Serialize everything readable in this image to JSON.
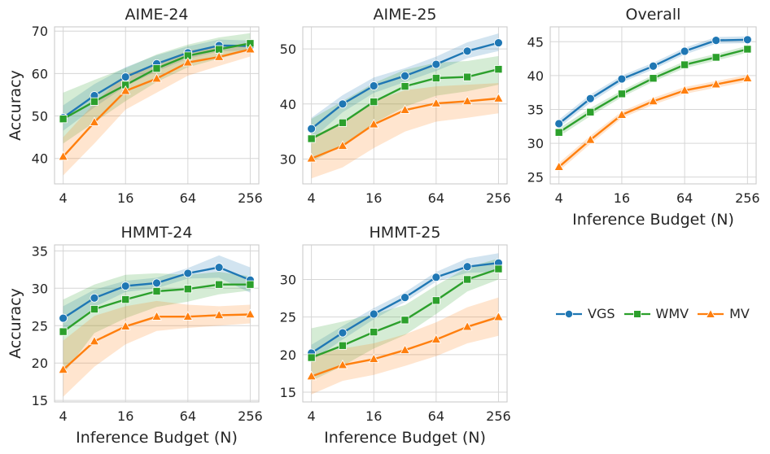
{
  "figure": {
    "legend": [
      {
        "name": "VGS",
        "color": "#1f77b4",
        "marker": "circle"
      },
      {
        "name": "WMV",
        "color": "#2ca02c",
        "marker": "square"
      },
      {
        "name": "MV",
        "color": "#ff7f0e",
        "marker": "triangle"
      }
    ]
  },
  "chart_data": [
    {
      "type": "line",
      "title": "AIME-24",
      "xlabel": "",
      "ylabel": "Accuracy",
      "x_scale": "log2",
      "x": [
        4,
        8,
        16,
        32,
        64,
        128,
        256
      ],
      "xticks": [
        4,
        16,
        64,
        256
      ],
      "xtick_labels": [
        "4",
        "16",
        "64",
        "256"
      ],
      "xlim": [
        3.3,
        310
      ],
      "ylim": [
        34,
        71
      ],
      "yticks": [
        40,
        50,
        60,
        70
      ],
      "grid": true,
      "series": [
        {
          "name": "VGS",
          "values": [
            49.6,
            54.8,
            59.2,
            62.3,
            64.9,
            66.6,
            66.5
          ],
          "band_low": [
            46.5,
            52,
            57,
            60.5,
            63.5,
            65.2,
            65.5
          ],
          "band_high": [
            52.5,
            57.5,
            61.5,
            64.3,
            66.4,
            68,
            67.8
          ]
        },
        {
          "name": "WMV",
          "values": [
            49.3,
            53.4,
            57.3,
            61.2,
            64.2,
            65.7,
            67.1
          ],
          "band_low": [
            43.5,
            48.5,
            53.5,
            58,
            61.5,
            63.5,
            65.5
          ],
          "band_high": [
            55.5,
            58.5,
            61.3,
            64.5,
            66.8,
            68.5,
            69.5
          ]
        },
        {
          "name": "MV",
          "values": [
            40.4,
            48.5,
            55.9,
            58.8,
            62.6,
            63.9,
            65.7
          ],
          "band_low": [
            36,
            43.5,
            51.5,
            55.5,
            59.5,
            61.8,
            64
          ],
          "band_high": [
            45,
            53,
            60,
            62,
            65.5,
            66.2,
            67.3
          ]
        }
      ]
    },
    {
      "type": "line",
      "title": "AIME-25",
      "xlabel": "",
      "ylabel": "",
      "x_scale": "log2",
      "x": [
        4,
        8,
        16,
        32,
        64,
        128,
        256
      ],
      "xticks": [
        4,
        16,
        64,
        256
      ],
      "xtick_labels": [
        "4",
        "16",
        "64",
        "256"
      ],
      "xlim": [
        3.3,
        310
      ],
      "ylim": [
        25.5,
        54
      ],
      "yticks": [
        30,
        40,
        50
      ],
      "grid": true,
      "series": [
        {
          "name": "VGS",
          "values": [
            35.5,
            40,
            43.3,
            45.1,
            47.2,
            49.6,
            51.1
          ],
          "band_low": [
            33.5,
            38.5,
            42,
            44,
            46,
            48.3,
            49.6
          ],
          "band_high": [
            37.5,
            41.6,
            44.8,
            46.5,
            48.6,
            51.2,
            52.8
          ]
        },
        {
          "name": "WMV",
          "values": [
            33.7,
            36.6,
            40.4,
            43.2,
            44.7,
            44.9,
            46.3
          ],
          "band_low": [
            29.5,
            32.5,
            36.5,
            39.5,
            41.5,
            42.3,
            43.5
          ],
          "band_high": [
            37.3,
            40.5,
            43.8,
            46.2,
            47.5,
            47.8,
            48.7
          ]
        },
        {
          "name": "MV",
          "values": [
            30.1,
            32.4,
            36.3,
            38.9,
            40.1,
            40.5,
            41
          ],
          "band_low": [
            26.5,
            28.5,
            32,
            35,
            36.8,
            37.5,
            38.3
          ],
          "band_high": [
            34,
            36.8,
            40.5,
            42.5,
            43.2,
            43.5,
            43.8
          ]
        }
      ]
    },
    {
      "type": "line",
      "title": "Overall",
      "xlabel": "Inference Budget (N)",
      "ylabel": "",
      "x_scale": "log2",
      "x": [
        4,
        8,
        16,
        32,
        64,
        128,
        256
      ],
      "xticks": [
        4,
        16,
        64,
        256
      ],
      "xtick_labels": [
        "4",
        "16",
        "64",
        "256"
      ],
      "xlim": [
        3.3,
        310
      ],
      "ylim": [
        24,
        47.2
      ],
      "yticks": [
        25,
        30,
        35,
        40,
        45
      ],
      "grid": true,
      "series": [
        {
          "name": "VGS",
          "values": [
            32.9,
            36.6,
            39.5,
            41.4,
            43.6,
            45.2,
            45.3
          ],
          "band_low": [
            32.3,
            36,
            39,
            40.9,
            43.1,
            44.7,
            44.8
          ],
          "band_high": [
            33.5,
            37.2,
            40,
            41.9,
            44.1,
            45.7,
            45.8
          ]
        },
        {
          "name": "WMV",
          "values": [
            31.6,
            34.6,
            37.3,
            39.6,
            41.6,
            42.7,
            43.9
          ],
          "band_low": [
            31,
            34,
            36.8,
            39.1,
            41.1,
            42.2,
            43.4
          ],
          "band_high": [
            32.2,
            35.2,
            37.8,
            40.1,
            42.1,
            43.2,
            44.4
          ]
        },
        {
          "name": "MV",
          "values": [
            26.5,
            30.5,
            34.2,
            36.2,
            37.8,
            38.7,
            39.6
          ],
          "band_low": [
            25.9,
            29.9,
            33.7,
            35.7,
            37.3,
            38.2,
            39.1
          ],
          "band_high": [
            27.1,
            31.1,
            34.7,
            36.7,
            38.3,
            39.2,
            40.1
          ]
        }
      ]
    },
    {
      "type": "line",
      "title": "HMMT-24",
      "xlabel": "Inference Budget (N)",
      "ylabel": "Accuracy",
      "x_scale": "log2",
      "x": [
        4,
        8,
        16,
        32,
        64,
        128,
        256
      ],
      "xticks": [
        4,
        16,
        64,
        256
      ],
      "xtick_labels": [
        "4",
        "16",
        "64",
        "256"
      ],
      "xlim": [
        3.3,
        310
      ],
      "ylim": [
        14.8,
        35.8
      ],
      "yticks": [
        15,
        20,
        25,
        30,
        35
      ],
      "grid": true,
      "series": [
        {
          "name": "VGS",
          "values": [
            26,
            28.7,
            30.3,
            30.7,
            32,
            32.8,
            31.1
          ],
          "band_low": [
            24.2,
            27.5,
            29.5,
            30,
            31.3,
            31.4,
            29.4
          ],
          "band_high": [
            27.6,
            29.8,
            31,
            31.4,
            32.7,
            34.4,
            32.8
          ]
        },
        {
          "name": "WMV",
          "values": [
            24.2,
            27.2,
            28.5,
            29.6,
            29.9,
            30.5,
            30.5
          ],
          "band_low": [
            18.5,
            24,
            26,
            27.5,
            28.2,
            29.2,
            29.7
          ],
          "band_high": [
            28.5,
            30.5,
            31.8,
            32,
            31.8,
            32.2,
            31.6
          ]
        },
        {
          "name": "MV",
          "values": [
            19.1,
            22.9,
            24.9,
            26.2,
            26.2,
            26.4,
            26.5
          ],
          "band_low": [
            15.5,
            19.5,
            22.5,
            24.3,
            24.7,
            25,
            25.3
          ],
          "band_high": [
            23,
            26.3,
            27.6,
            28.3,
            27.8,
            27.6,
            27.8
          ]
        }
      ]
    },
    {
      "type": "line",
      "title": "HMMT-25",
      "xlabel": "Inference Budget (N)",
      "ylabel": "",
      "x_scale": "log2",
      "x": [
        4,
        8,
        16,
        32,
        64,
        128,
        256
      ],
      "xticks": [
        4,
        16,
        64,
        256
      ],
      "xtick_labels": [
        "4",
        "16",
        "64",
        "256"
      ],
      "xlim": [
        3.3,
        310
      ],
      "ylim": [
        13.7,
        34.6
      ],
      "yticks": [
        15,
        20,
        25,
        30
      ],
      "grid": true,
      "series": [
        {
          "name": "VGS",
          "values": [
            20.2,
            22.9,
            25.4,
            27.6,
            30.3,
            31.7,
            32.2
          ],
          "band_low": [
            19.2,
            22,
            24.7,
            27,
            29.7,
            30.9,
            31
          ],
          "band_high": [
            21.3,
            23.8,
            26.2,
            28.3,
            31,
            32.8,
            33.5
          ]
        },
        {
          "name": "WMV",
          "values": [
            19.6,
            21.2,
            23,
            24.6,
            27.2,
            30,
            31.4
          ],
          "band_low": [
            16.5,
            18.5,
            20.8,
            22.6,
            25.4,
            28.4,
            30
          ],
          "band_high": [
            23.5,
            24.4,
            25.4,
            26.6,
            29.2,
            31.6,
            32.8
          ]
        },
        {
          "name": "MV",
          "values": [
            17.1,
            18.6,
            19.4,
            20.6,
            22,
            23.7,
            25
          ],
          "band_low": [
            14.7,
            16.5,
            17.3,
            18.5,
            19.8,
            21.5,
            22.5
          ],
          "band_high": [
            20,
            20.8,
            21.5,
            22.7,
            24.3,
            26.3,
            27.6
          ]
        }
      ]
    }
  ]
}
